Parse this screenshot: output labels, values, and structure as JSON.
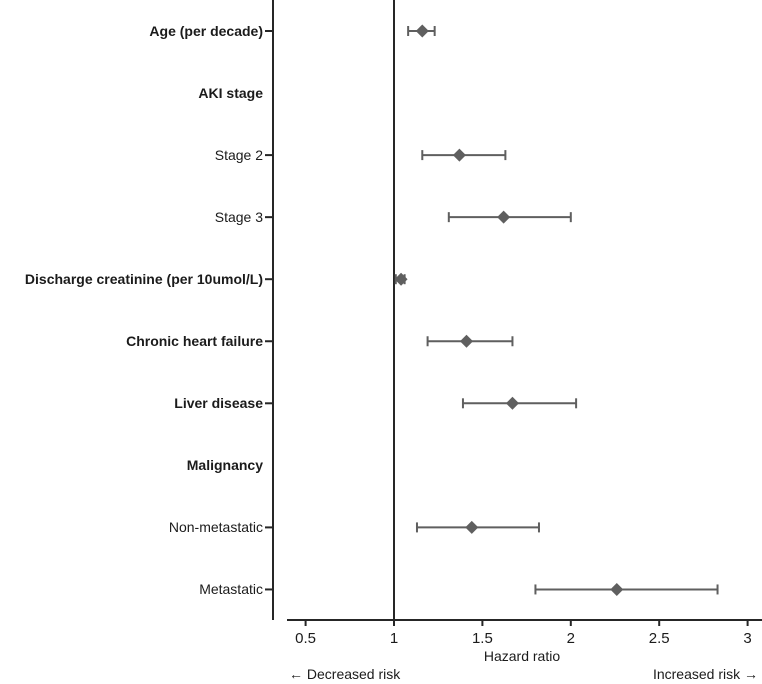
{
  "chart_data": {
    "type": "scatter",
    "subtype": "forest-plot",
    "title": "",
    "xlabel": "Hazard ratio",
    "ylabel": "",
    "xlim": [
      0.44,
      3.08
    ],
    "grid": false,
    "legend": "none",
    "reference_line_x": 1,
    "x_ticks": [
      {
        "value": 0.5,
        "label": "0.5"
      },
      {
        "value": 1,
        "label": "1"
      },
      {
        "value": 1.5,
        "label": "1.5"
      },
      {
        "value": 2,
        "label": "2"
      },
      {
        "value": 2.5,
        "label": "2.5"
      },
      {
        "value": 3,
        "label": "3"
      }
    ],
    "direction_annotations": {
      "left": "← Decreased risk",
      "right": "Increased risk →"
    },
    "rows": [
      {
        "label": "Age (per decade)",
        "bold": true,
        "hr": 1.16,
        "ci_low": 1.08,
        "ci_high": 1.23
      },
      {
        "label": "AKI stage",
        "bold": true,
        "hr": null,
        "ci_low": null,
        "ci_high": null
      },
      {
        "label": "Stage 2",
        "bold": false,
        "hr": 1.37,
        "ci_low": 1.16,
        "ci_high": 1.63
      },
      {
        "label": "Stage 3",
        "bold": false,
        "hr": 1.62,
        "ci_low": 1.31,
        "ci_high": 2.0
      },
      {
        "label": "Discharge creatinine (per 10umol/L)",
        "bold": true,
        "hr": 1.04,
        "ci_low": 1.01,
        "ci_high": 1.06
      },
      {
        "label": "Chronic heart failure",
        "bold": true,
        "hr": 1.41,
        "ci_low": 1.19,
        "ci_high": 1.67
      },
      {
        "label": "Liver disease",
        "bold": true,
        "hr": 1.67,
        "ci_low": 1.39,
        "ci_high": 2.03
      },
      {
        "label": "Malignancy",
        "bold": true,
        "hr": null,
        "ci_low": null,
        "ci_high": null
      },
      {
        "label": "Non-metastatic",
        "bold": false,
        "hr": 1.44,
        "ci_low": 1.13,
        "ci_high": 1.82
      },
      {
        "label": "Metastatic",
        "bold": false,
        "hr": 2.26,
        "ci_low": 1.8,
        "ci_high": 2.83
      }
    ],
    "colors": {
      "marker": "#5f5f5f",
      "axis": "#262626",
      "text": "#1b1b1b"
    }
  }
}
